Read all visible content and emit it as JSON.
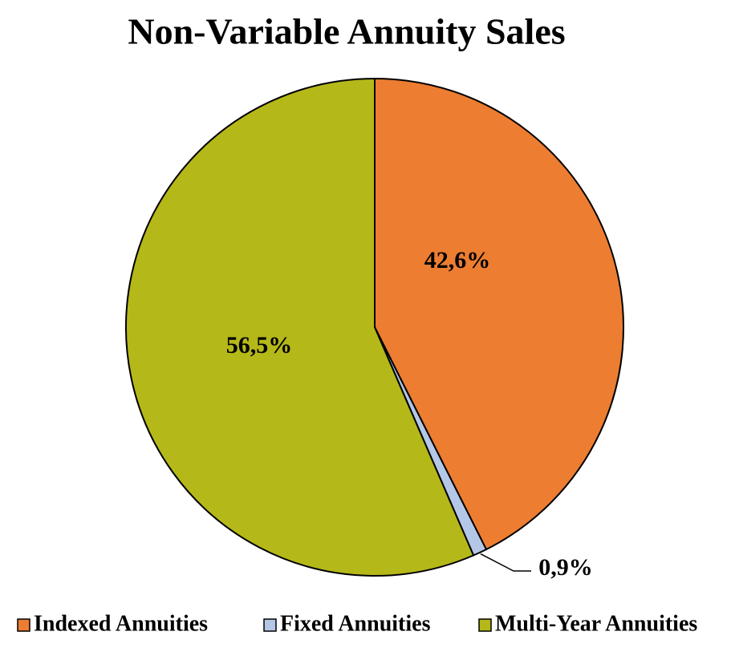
{
  "chart_data": {
    "type": "pie",
    "title": "Non-Variable Annuity Sales",
    "categories": [
      "Indexed Annuities",
      "Fixed Annuities",
      "Multi-Year Annuities"
    ],
    "values": [
      42.6,
      0.9,
      56.5
    ],
    "value_labels": [
      "42,6%",
      "0,9%",
      "56,5%"
    ],
    "colors": [
      "#ED7D31",
      "#B4C7E7",
      "#B5B819"
    ],
    "legend": "bottom"
  }
}
